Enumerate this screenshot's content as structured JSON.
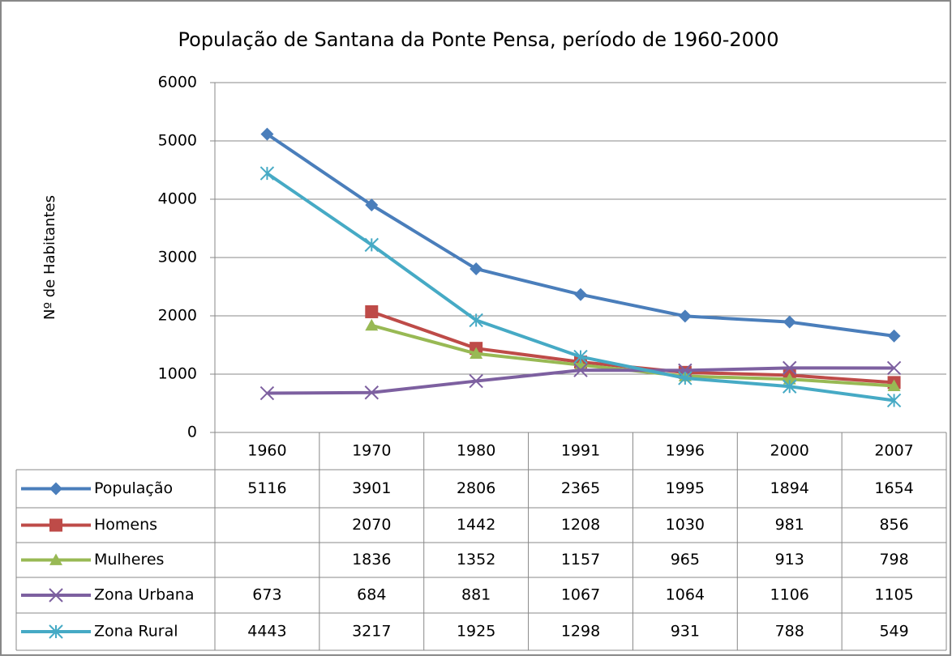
{
  "chart_data": {
    "type": "line",
    "title": "População de Santana da Ponte Pensa, período de 1960-2000",
    "y_label": "Nº de Habitantes",
    "categories": [
      "1960",
      "1970",
      "1980",
      "1991",
      "1996",
      "2000",
      "2007"
    ],
    "series": [
      {
        "name": "População",
        "color": "#4a7ebb",
        "marker": "diamond",
        "values": [
          5116,
          3901,
          2806,
          2365,
          1995,
          1894,
          1654
        ]
      },
      {
        "name": "Homens",
        "color": "#be4b48",
        "marker": "square",
        "values": [
          null,
          2070,
          1442,
          1208,
          1030,
          981,
          856
        ]
      },
      {
        "name": "Mulheres",
        "color": "#98b954",
        "marker": "triangle",
        "values": [
          null,
          1836,
          1352,
          1157,
          965,
          913,
          798
        ]
      },
      {
        "name": "Zona Urbana",
        "color": "#7d60a0",
        "marker": "x",
        "values": [
          673,
          684,
          881,
          1067,
          1064,
          1106,
          1105
        ]
      },
      {
        "name": "Zona Rural",
        "color": "#46aac5",
        "marker": "star",
        "values": [
          4443,
          3217,
          1925,
          1298,
          931,
          788,
          549
        ]
      }
    ],
    "ylim": [
      0,
      6000
    ],
    "yticks": [
      0,
      1000,
      2000,
      3000,
      4000,
      5000,
      6000
    ],
    "grid": true,
    "data_table": true
  }
}
